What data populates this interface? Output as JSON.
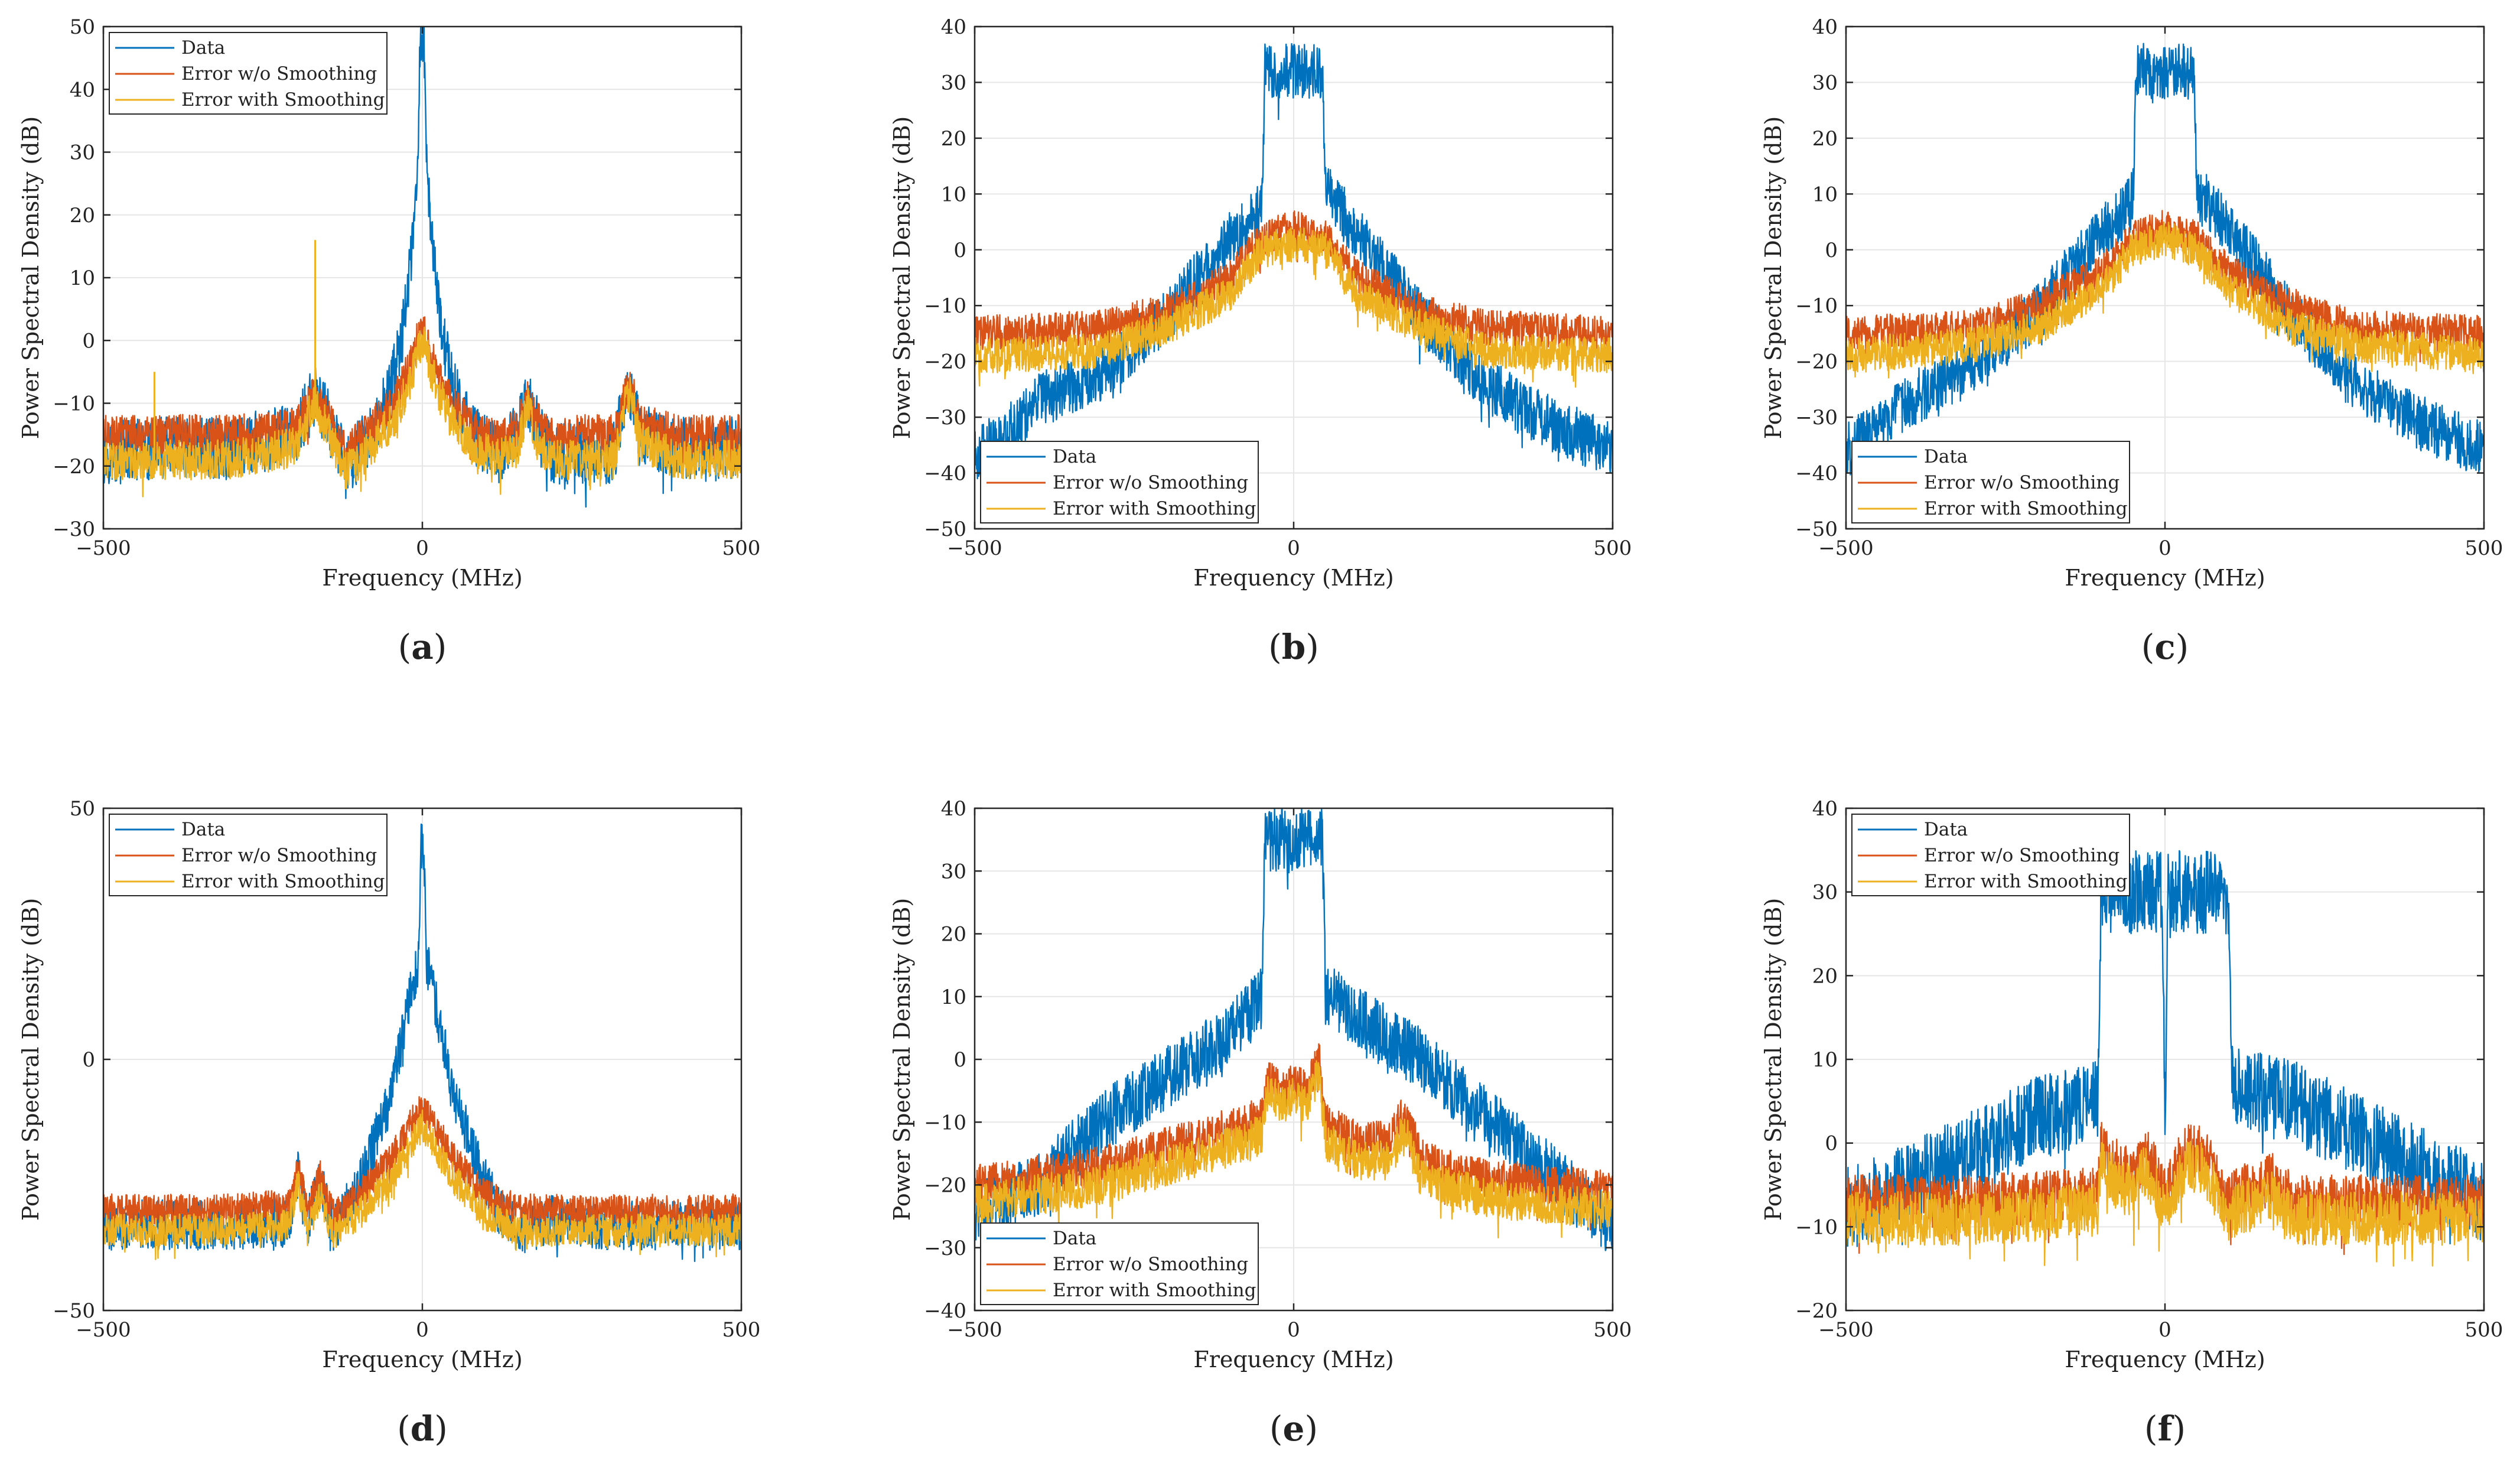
{
  "legend": {
    "data_label": "Data",
    "err_label": "Error w/o Smoothing",
    "smooth_label": "Error with Smoothing"
  },
  "colors": {
    "data": "#0072BD",
    "err": "#D95319",
    "smooth": "#EDB120",
    "grid": "#e6e6e6",
    "axis": "#262626"
  },
  "chart_data": [
    {
      "id": "a",
      "type": "line",
      "caption": "(a)",
      "caption_letter": "a",
      "xlabel": "Frequency (MHz)",
      "ylabel": "Power Spectral Density (dB)",
      "xlim": [
        -500,
        500
      ],
      "ylim": [
        -30,
        50
      ],
      "xticks": [
        -500,
        0,
        500
      ],
      "yticks": [
        -30,
        -20,
        -10,
        0,
        10,
        20,
        30,
        40,
        50
      ],
      "legend_position": "top-left",
      "series": [
        {
          "name": "Data",
          "x": [
            -500,
            -400,
            -300,
            -200,
            -170,
            -150,
            -120,
            -80,
            -50,
            -30,
            -15,
            -8,
            -4,
            0,
            4,
            8,
            15,
            30,
            50,
            80,
            120,
            150,
            165,
            180,
            200,
            300,
            320,
            330,
            340,
            400,
            500
          ],
          "y": [
            -18,
            -17,
            -17,
            -15,
            -9,
            -12,
            -20,
            -15,
            -8,
            2,
            15,
            25,
            45,
            50,
            45,
            25,
            15,
            2,
            -8,
            -15,
            -18,
            -15,
            -9,
            -14,
            -18,
            -18,
            -8,
            -8,
            -15,
            -17,
            -17
          ]
        },
        {
          "name": "Error w/o Smoothing",
          "x": [
            -500,
            -400,
            -300,
            -200,
            -170,
            -150,
            -120,
            -80,
            -40,
            -15,
            0,
            15,
            40,
            80,
            120,
            150,
            165,
            180,
            200,
            300,
            320,
            330,
            340,
            400,
            500
          ],
          "y": [
            -15,
            -15,
            -15,
            -14,
            -9,
            -12,
            -18,
            -14,
            -9,
            -3,
            3,
            -3,
            -9,
            -14,
            -16,
            -14,
            -9,
            -13,
            -15,
            -15,
            -8,
            -8,
            -13,
            -15,
            -15
          ]
        },
        {
          "name": "Error with Smoothing",
          "x": [
            -500,
            -400,
            -300,
            -200,
            -170,
            -150,
            -120,
            -80,
            -40,
            -15,
            0,
            15,
            40,
            80,
            120,
            150,
            165,
            180,
            200,
            300,
            320,
            330,
            340,
            400,
            500
          ],
          "y": [
            -19,
            -19,
            -19,
            -17,
            -10,
            -14,
            -21,
            -17,
            -12,
            -5,
            0,
            -5,
            -12,
            -17,
            -19,
            -17,
            -10,
            -16,
            -19,
            -19,
            -9,
            -9,
            -16,
            -19,
            -19
          ]
        }
      ],
      "annotations": [
        {
          "x": -168,
          "y": 16
        },
        {
          "x": -420,
          "y": -5
        }
      ]
    },
    {
      "id": "b",
      "type": "line",
      "caption": "(b)",
      "caption_letter": "b",
      "xlabel": "Frequency (MHz)",
      "ylabel": "Power Spectral Density (dB)",
      "xlim": [
        -500,
        500
      ],
      "ylim": [
        -50,
        40
      ],
      "xticks": [
        -500,
        0,
        500
      ],
      "yticks": [
        -50,
        -40,
        -30,
        -20,
        -10,
        0,
        10,
        20,
        30,
        40
      ],
      "legend_position": "bottom-left",
      "series": [
        {
          "name": "Data",
          "x": [
            -500,
            -450,
            -400,
            -300,
            -200,
            -100,
            -55,
            -50,
            -45,
            45,
            50,
            55,
            100,
            200,
            300,
            400,
            500
          ],
          "y": [
            -37,
            -33,
            -27,
            -22,
            -12,
            2,
            7,
            10,
            32,
            32,
            10,
            10,
            3,
            -12,
            -24,
            -31,
            -36
          ]
        },
        {
          "name": "Error w/o Smoothing",
          "x": [
            -500,
            -300,
            -200,
            -100,
            -50,
            0,
            50,
            100,
            200,
            300,
            500
          ],
          "y": [
            -15,
            -14,
            -11,
            -5,
            2,
            4,
            2,
            -5,
            -11,
            -14,
            -15
          ]
        },
        {
          "name": "Error with Smoothing",
          "x": [
            -500,
            -300,
            -200,
            -100,
            -50,
            0,
            50,
            100,
            200,
            300,
            500
          ],
          "y": [
            -19,
            -18,
            -14,
            -8,
            0,
            1,
            0,
            -8,
            -14,
            -18,
            -19
          ]
        }
      ]
    },
    {
      "id": "c",
      "type": "line",
      "caption": "(c)",
      "caption_letter": "c",
      "xlabel": "Frequency (MHz)",
      "ylabel": "Power Spectral Density (dB)",
      "xlim": [
        -500,
        500
      ],
      "ylim": [
        -50,
        40
      ],
      "xticks": [
        -500,
        0,
        500
      ],
      "yticks": [
        -50,
        -40,
        -30,
        -20,
        -10,
        0,
        10,
        20,
        30,
        40
      ],
      "legend_position": "bottom-left",
      "series": [
        {
          "name": "Data",
          "x": [
            -500,
            -450,
            -400,
            -300,
            -200,
            -100,
            -55,
            -50,
            -45,
            45,
            50,
            55,
            100,
            200,
            300,
            400,
            500
          ],
          "y": [
            -36,
            -32,
            -27,
            -21,
            -11,
            3,
            8,
            10,
            32,
            32,
            10,
            10,
            4,
            -12,
            -24,
            -31,
            -36
          ]
        },
        {
          "name": "Error w/o Smoothing",
          "x": [
            -500,
            -300,
            -200,
            -100,
            -50,
            0,
            50,
            100,
            200,
            300,
            500
          ],
          "y": [
            -15,
            -14,
            -10,
            -4,
            2,
            4,
            2,
            -4,
            -10,
            -14,
            -15
          ]
        },
        {
          "name": "Error with Smoothing",
          "x": [
            -500,
            -300,
            -200,
            -100,
            -50,
            0,
            50,
            100,
            200,
            300,
            500
          ],
          "y": [
            -19,
            -17,
            -14,
            -7,
            0,
            2,
            0,
            -7,
            -14,
            -17,
            -19
          ]
        }
      ]
    },
    {
      "id": "d",
      "type": "line",
      "caption": "(d)",
      "caption_letter": "d",
      "xlabel": "Frequency (MHz)",
      "ylabel": "Power Spectral Density (dB)",
      "xlim": [
        -500,
        500
      ],
      "ylim": [
        -50,
        50
      ],
      "xticks": [
        -500,
        0,
        500
      ],
      "yticks": [
        -50,
        0,
        50
      ],
      "legend_position": "top-left",
      "series": [
        {
          "name": "Data",
          "x": [
            -500,
            -300,
            -210,
            -195,
            -180,
            -160,
            -140,
            -100,
            -50,
            -15,
            -6,
            -3,
            0,
            3,
            6,
            15,
            50,
            100,
            120,
            150,
            200,
            300,
            500
          ],
          "y": [
            -33,
            -33,
            -32,
            -23,
            -33,
            -24,
            -34,
            -25,
            -8,
            15,
            20,
            40,
            45,
            40,
            20,
            15,
            -8,
            -25,
            -30,
            -34,
            -32,
            -33,
            -33
          ]
        },
        {
          "name": "Error w/o Smoothing",
          "x": [
            -500,
            -300,
            -210,
            -195,
            -180,
            -160,
            -140,
            -100,
            -50,
            0,
            50,
            100,
            150,
            300,
            500
          ],
          "y": [
            -30,
            -30,
            -29,
            -21,
            -30,
            -23,
            -31,
            -27,
            -20,
            -9,
            -20,
            -27,
            -30,
            -30,
            -30
          ]
        },
        {
          "name": "Error with Smoothing",
          "x": [
            -500,
            -300,
            -210,
            -195,
            -180,
            -160,
            -140,
            -100,
            -50,
            0,
            50,
            100,
            150,
            300,
            500
          ],
          "y": [
            -34,
            -34,
            -33,
            -25,
            -34,
            -27,
            -35,
            -31,
            -24,
            -13,
            -24,
            -31,
            -34,
            -34,
            -34
          ]
        }
      ]
    },
    {
      "id": "e",
      "type": "line",
      "caption": "(e)",
      "caption_letter": "e",
      "xlabel": "Frequency (MHz)",
      "ylabel": "Power Spectral Density (dB)",
      "xlim": [
        -500,
        500
      ],
      "ylim": [
        -40,
        40
      ],
      "xticks": [
        -500,
        0,
        500
      ],
      "yticks": [
        -40,
        -30,
        -20,
        -10,
        0,
        10,
        20,
        30,
        40
      ],
      "legend_position": "bottom-left",
      "series": [
        {
          "name": "Data",
          "x": [
            -500,
            -400,
            -300,
            -200,
            -100,
            -55,
            -50,
            -45,
            45,
            50,
            55,
            100,
            200,
            300,
            400,
            480,
            500
          ],
          "y": [
            -24,
            -20,
            -10,
            -3,
            4,
            9,
            10,
            35,
            35,
            10,
            10,
            7,
            0,
            -9,
            -18,
            -25,
            -27
          ]
        },
        {
          "name": "Error w/o Smoothing",
          "x": [
            -500,
            -300,
            -200,
            -100,
            -50,
            -40,
            -20,
            0,
            20,
            40,
            50,
            100,
            150,
            170,
            180,
            200,
            300,
            500
          ],
          "y": [
            -20,
            -17,
            -14,
            -11,
            -9,
            -3,
            -5,
            -4,
            -5,
            0,
            -10,
            -13,
            -13,
            -9,
            -10,
            -16,
            -19,
            -21
          ]
        },
        {
          "name": "Error with Smoothing",
          "x": [
            -500,
            -300,
            -200,
            -100,
            -50,
            -40,
            -20,
            0,
            20,
            40,
            50,
            100,
            150,
            170,
            180,
            200,
            300,
            500
          ],
          "y": [
            -23,
            -20,
            -17,
            -14,
            -12,
            -5,
            -7,
            -6,
            -7,
            -2,
            -13,
            -16,
            -16,
            -12,
            -13,
            -19,
            -22,
            -24
          ]
        }
      ]
    },
    {
      "id": "f",
      "type": "line",
      "caption": "(f)",
      "caption_letter": "f",
      "xlabel": "Frequency (MHz)",
      "ylabel": "Power Spectral Density (dB)",
      "xlim": [
        -500,
        500
      ],
      "ylim": [
        -20,
        40
      ],
      "xticks": [
        -500,
        0,
        500
      ],
      "yticks": [
        -20,
        -10,
        0,
        10,
        20,
        30,
        40
      ],
      "legend_position": "top-left",
      "series": [
        {
          "name": "Data",
          "x": [
            -500,
            -400,
            -300,
            -200,
            -105,
            -100,
            -95,
            -5,
            0,
            5,
            95,
            100,
            105,
            200,
            300,
            400,
            500
          ],
          "y": [
            -8,
            -5,
            -1,
            3,
            5,
            30,
            30,
            30,
            3,
            30,
            30,
            30,
            7,
            5,
            1,
            -3,
            -7
          ]
        },
        {
          "name": "Error w/o Smoothing",
          "x": [
            -500,
            -300,
            -105,
            -100,
            -90,
            -50,
            -30,
            0,
            30,
            60,
            100,
            110,
            150,
            170,
            200,
            300,
            500
          ],
          "y": [
            -7,
            -7,
            -6,
            0,
            -2,
            -4,
            -1,
            -6,
            -1,
            -1,
            -7,
            -6,
            -5,
            -4,
            -7,
            -7,
            -7
          ]
        },
        {
          "name": "Error with Smoothing",
          "x": [
            -500,
            -300,
            -105,
            -100,
            -90,
            -50,
            -30,
            0,
            30,
            60,
            100,
            110,
            150,
            170,
            200,
            300,
            500
          ],
          "y": [
            -9,
            -9,
            -8,
            -2,
            -4,
            -6,
            -3,
            -8,
            -3,
            -3,
            -9,
            -8,
            -7,
            -6,
            -9,
            -9,
            -9
          ]
        }
      ]
    }
  ]
}
